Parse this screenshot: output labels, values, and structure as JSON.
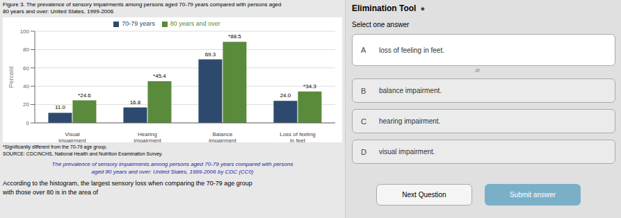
{
  "chart_data": {
    "type": "bar",
    "title": "Figure 3. The prevalence of sensory impairments among persons aged 70-79 years compared with persons aged\n80 years and over: United States, 1999-2006",
    "categories": [
      "Visual\nimpairment",
      "Hearing\nimpairment",
      "Balance\nimpairment",
      "Loss of feeling\nin feet"
    ],
    "series": [
      {
        "name": "70-79 years",
        "color": "#2d4a6e",
        "values": [
          11.0,
          16.8,
          69.3,
          24.0
        ],
        "value_labels": [
          "11.0",
          "16.8",
          "69.3",
          "24.0"
        ]
      },
      {
        "name": "80 years and over",
        "color": "#5a8a3c",
        "values": [
          24.6,
          45.4,
          88.5,
          34.3
        ],
        "value_labels": [
          "*24.6",
          "*45.4",
          "*88.5",
          "*34.3"
        ]
      }
    ],
    "ylabel": "Percent",
    "ylim": [
      0,
      100
    ],
    "yticks": [
      0,
      20,
      40,
      60,
      80,
      100
    ],
    "grid": true,
    "legend": "top",
    "data_labels": true,
    "annotations": [
      "*Significantly different from the 70-79 age group.",
      "SOURCE: CDC/NCHS, National Health and Nutrition Examination Survey.",
      "The prevalence of sensory impairments among persons aged 70-79 years compared with persons\naged 80 years and over: United States, 1999-2006 by CDC (CC0)",
      "According to the histogram, the largest sensory loss when comparing the 70-79 age group\nwith those over 80 is in the area of",
      "Elimination Tool",
      "●",
      "Select one answer",
      "A",
      "loss of feeling in feet.",
      "B",
      "balance impairment.",
      "C",
      "hearing impairment.",
      "D",
      "visual impairment.",
      "Ø",
      "Next Question",
      "Submit answer"
    ]
  }
}
